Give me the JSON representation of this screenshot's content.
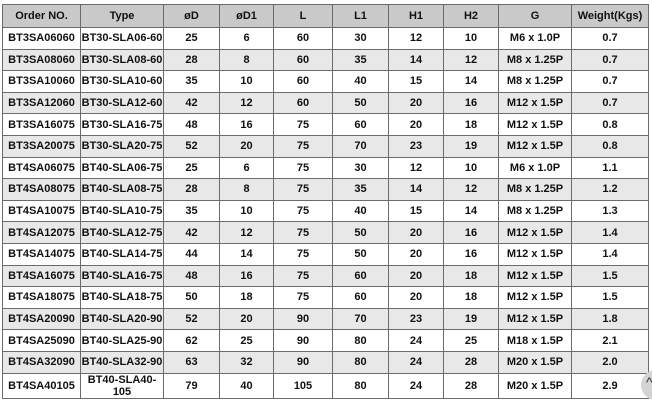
{
  "table": {
    "headers": [
      "Order NO.",
      "Type",
      "øD",
      "øD1",
      "L",
      "L1",
      "H1",
      "H2",
      "G",
      "Weight(Kgs)"
    ],
    "rows": [
      [
        "BT3SA06060",
        "BT30-SLA06-60",
        "25",
        "6",
        "60",
        "30",
        "12",
        "10",
        "M6 x 1.0P",
        "0.7"
      ],
      [
        "BT3SA08060",
        "BT30-SLA08-60",
        "28",
        "8",
        "60",
        "35",
        "14",
        "12",
        "M8 x 1.25P",
        "0.7"
      ],
      [
        "BT3SA10060",
        "BT30-SLA10-60",
        "35",
        "10",
        "60",
        "40",
        "15",
        "14",
        "M8 x 1.25P",
        "0.7"
      ],
      [
        "BT3SA12060",
        "BT30-SLA12-60",
        "42",
        "12",
        "60",
        "50",
        "20",
        "16",
        "M12 x 1.5P",
        "0.7"
      ],
      [
        "BT3SA16075",
        "BT30-SLA16-75",
        "48",
        "16",
        "75",
        "60",
        "20",
        "18",
        "M12 x 1.5P",
        "0.8"
      ],
      [
        "BT3SA20075",
        "BT30-SLA20-75",
        "52",
        "20",
        "75",
        "70",
        "23",
        "19",
        "M12 x 1.5P",
        "0.8"
      ],
      [
        "BT4SA06075",
        "BT40-SLA06-75",
        "25",
        "6",
        "75",
        "30",
        "12",
        "10",
        "M6 x 1.0P",
        "1.1"
      ],
      [
        "BT4SA08075",
        "BT40-SLA08-75",
        "28",
        "8",
        "75",
        "35",
        "14",
        "12",
        "M8 x 1.25P",
        "1.2"
      ],
      [
        "BT4SA10075",
        "BT40-SLA10-75",
        "35",
        "10",
        "75",
        "40",
        "15",
        "14",
        "M8 x 1.25P",
        "1.3"
      ],
      [
        "BT4SA12075",
        "BT40-SLA12-75",
        "42",
        "12",
        "75",
        "50",
        "20",
        "16",
        "M12 x 1.5P",
        "1.4"
      ],
      [
        "BT4SA14075",
        "BT40-SLA14-75",
        "44",
        "14",
        "75",
        "50",
        "20",
        "16",
        "M12 x 1.5P",
        "1.4"
      ],
      [
        "BT4SA16075",
        "BT40-SLA16-75",
        "48",
        "16",
        "75",
        "60",
        "20",
        "18",
        "M12 x 1.5P",
        "1.5"
      ],
      [
        "BT4SA18075",
        "BT40-SLA18-75",
        "50",
        "18",
        "75",
        "60",
        "20",
        "18",
        "M12 x 1.5P",
        "1.5"
      ],
      [
        "BT4SA20090",
        "BT40-SLA20-90",
        "52",
        "20",
        "90",
        "70",
        "23",
        "19",
        "M12 x 1.5P",
        "1.8"
      ],
      [
        "BT4SA25090",
        "BT40-SLA25-90",
        "62",
        "25",
        "90",
        "80",
        "24",
        "25",
        "M18 x 1.5P",
        "2.1"
      ],
      [
        "BT4SA32090",
        "BT40-SLA32-90",
        "63",
        "32",
        "90",
        "80",
        "24",
        "28",
        "M20 x 1.5P",
        "2.0"
      ],
      [
        "BT4SA40105",
        "BT40-SLA40-105",
        "79",
        "40",
        "105",
        "80",
        "24",
        "28",
        "M20 x 1.5P",
        "2.9"
      ]
    ]
  },
  "scroll_top": {
    "icon": "chevron-up-icon",
    "glyph": "^"
  }
}
